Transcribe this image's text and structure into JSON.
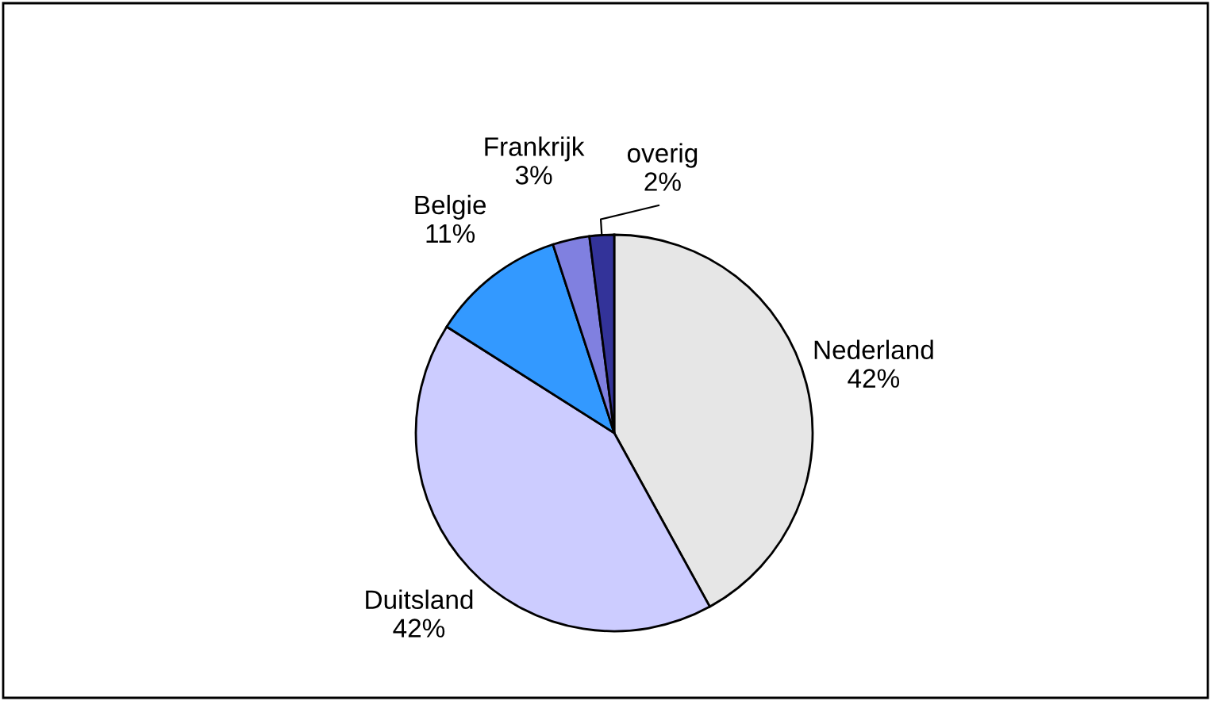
{
  "chart_data": {
    "type": "pie",
    "categories": [
      "Nederland",
      "Duitsland",
      "Belgie",
      "Frankrijk",
      "overig"
    ],
    "values": [
      42,
      42,
      11,
      3,
      2
    ],
    "value_labels": [
      "42%",
      "42%",
      "11%",
      "3%",
      "2%"
    ],
    "colors": [
      "#e6e6e6",
      "#ccccff",
      "#3399ff",
      "#8080e0",
      "#333399"
    ],
    "legend": false
  }
}
